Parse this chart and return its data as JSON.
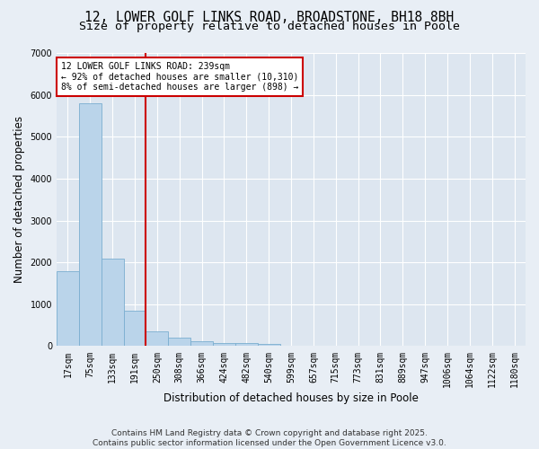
{
  "title1": "12, LOWER GOLF LINKS ROAD, BROADSTONE, BH18 8BH",
  "title2": "Size of property relative to detached houses in Poole",
  "xlabel": "Distribution of detached houses by size in Poole",
  "ylabel": "Number of detached properties",
  "categories": [
    "17sqm",
    "75sqm",
    "133sqm",
    "191sqm",
    "250sqm",
    "308sqm",
    "366sqm",
    "424sqm",
    "482sqm",
    "540sqm",
    "599sqm",
    "657sqm",
    "715sqm",
    "773sqm",
    "831sqm",
    "889sqm",
    "947sqm",
    "1006sqm",
    "1064sqm",
    "1122sqm",
    "1180sqm"
  ],
  "values": [
    1780,
    5800,
    2100,
    840,
    350,
    210,
    115,
    80,
    65,
    45,
    10,
    7,
    5,
    3,
    2,
    1,
    1,
    1,
    0,
    0,
    0
  ],
  "bar_color": "#bad4ea",
  "bar_edge_color": "#7aaed0",
  "vline_color": "#cc0000",
  "vline_pos": 3.5,
  "annotation_text": "12 LOWER GOLF LINKS ROAD: 239sqm\n← 92% of detached houses are smaller (10,310)\n8% of semi-detached houses are larger (898) →",
  "box_color": "#cc0000",
  "bg_color": "#dde6f0",
  "fig_color": "#e8eef5",
  "ylim": [
    0,
    7000
  ],
  "yticks": [
    0,
    1000,
    2000,
    3000,
    4000,
    5000,
    6000,
    7000
  ],
  "footer": "Contains HM Land Registry data © Crown copyright and database right 2025.\nContains public sector information licensed under the Open Government Licence v3.0.",
  "title_fontsize": 10.5,
  "subtitle_fontsize": 9.5,
  "axis_label_fontsize": 8.5,
  "tick_fontsize": 7,
  "annotation_fontsize": 7,
  "footer_fontsize": 6.5
}
